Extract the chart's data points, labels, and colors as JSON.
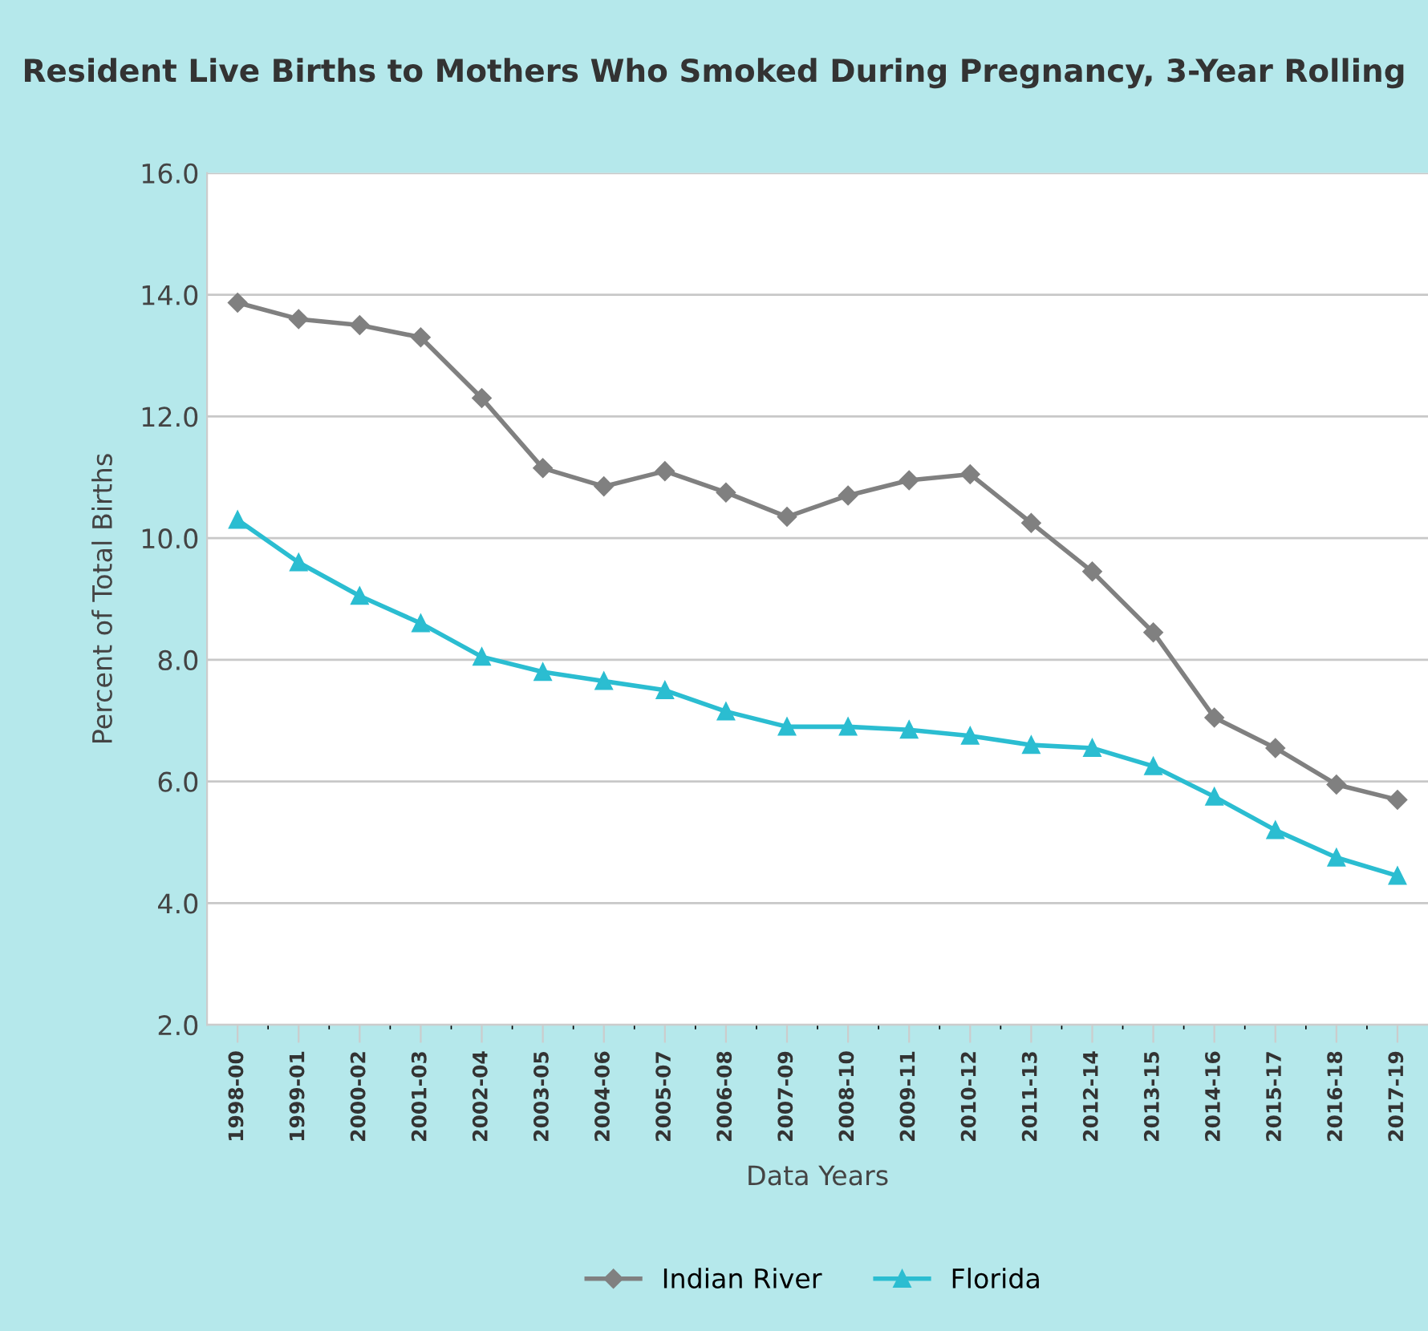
{
  "chart_data": {
    "type": "line",
    "title": "Resident Live Births to Mothers Who Smoked During Pregnancy, 3-Year Rolling",
    "xlabel": "Data Years",
    "ylabel": "Percent of Total Births",
    "categories": [
      "1998-00",
      "1999-01",
      "2000-02",
      "2001-03",
      "2002-04",
      "2003-05",
      "2004-06",
      "2005-07",
      "2006-08",
      "2007-09",
      "2008-10",
      "2009-11",
      "2010-12",
      "2011-13",
      "2012-14",
      "2013-15",
      "2014-16",
      "2015-17",
      "2016-18",
      "2017-19"
    ],
    "series": [
      {
        "name": "Indian River",
        "color": "#808080",
        "marker": "diamond",
        "values": [
          13.87,
          13.6,
          13.5,
          13.3,
          12.3,
          11.15,
          10.85,
          11.1,
          10.75,
          10.35,
          10.7,
          10.95,
          11.05,
          10.25,
          9.45,
          8.45,
          7.05,
          6.55,
          5.95,
          5.7
        ]
      },
      {
        "name": "Florida",
        "color": "#2bbdd1",
        "marker": "triangle",
        "values": [
          10.3,
          9.6,
          9.05,
          8.6,
          8.05,
          7.8,
          7.65,
          7.5,
          7.15,
          6.9,
          6.9,
          6.85,
          6.75,
          6.6,
          6.55,
          6.25,
          5.75,
          5.2,
          4.75,
          4.45
        ]
      }
    ],
    "ylim": [
      2,
      16
    ],
    "yticks": [
      {
        "value": 2,
        "label": "2.0"
      },
      {
        "value": 4,
        "label": "4.0"
      },
      {
        "value": 6,
        "label": "6.0"
      },
      {
        "value": 8,
        "label": "8.0"
      },
      {
        "value": 10,
        "label": "10.0"
      },
      {
        "value": 12,
        "label": "12.0"
      },
      {
        "value": 14,
        "label": "14.0"
      },
      {
        "value": 16,
        "label": "16.0"
      }
    ],
    "grid": "y",
    "legend": "bottom",
    "line_style": "solid"
  }
}
